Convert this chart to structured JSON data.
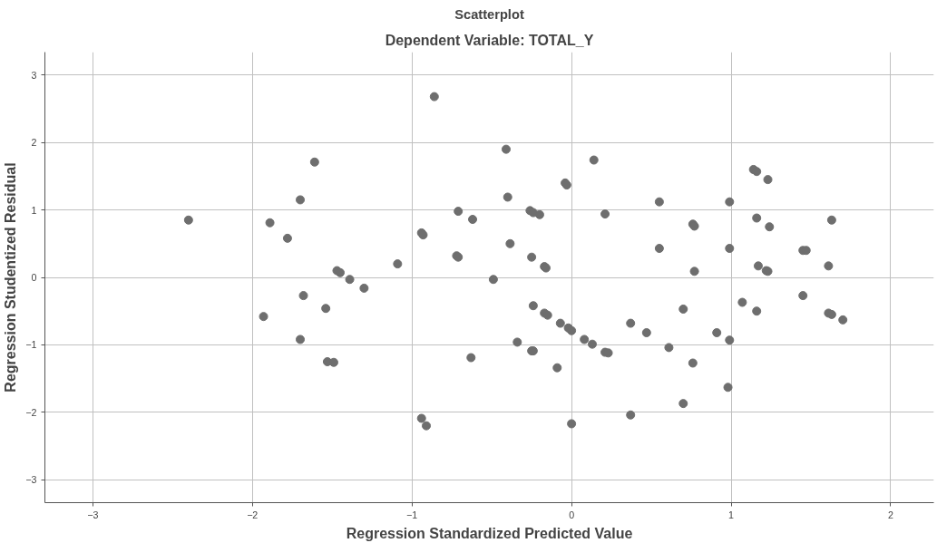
{
  "chart_data": {
    "type": "scatter",
    "title": "Scatterplot",
    "subtitle": "Dependent Variable: TOTAL_Y",
    "xlabel": "Regression Standardized Predicted Value",
    "ylabel": "Regression Studentized Residual",
    "xlim": [
      -3.3,
      2.27
    ],
    "ylim": [
      -3.34,
      3.34
    ],
    "xticks": [
      -3,
      -2,
      -1,
      0,
      1,
      2
    ],
    "yticks": [
      -3,
      -2,
      -1,
      0,
      1,
      2,
      3
    ],
    "grid": true,
    "marker": "circle",
    "series": [
      {
        "color": "#6e6e6e",
        "x": [
          -2.4,
          -1.89,
          -1.78,
          -1.7,
          -1.61,
          -1.93,
          -1.68,
          -1.7,
          -1.54,
          -1.47,
          -1.45,
          -1.39,
          -1.53,
          -1.49,
          -1.3,
          -1.09,
          -0.94,
          -0.93,
          -0.86,
          -0.71,
          -0.62,
          -0.72,
          -0.71,
          -0.49,
          -0.41,
          -0.4,
          -0.385,
          -0.26,
          -0.24,
          -0.2,
          -0.25,
          -0.17,
          -0.16,
          -0.04,
          -0.03,
          0.14,
          0.21,
          -0.24,
          -0.17,
          -0.15,
          -0.07,
          -0.02,
          0.0,
          0.08,
          0.13,
          0.21,
          0.23,
          0.37,
          0.47,
          -0.34,
          -0.25,
          -0.24,
          -0.63,
          -0.09,
          -0.94,
          -0.91,
          0.0,
          0.37,
          0.55,
          0.55,
          0.76,
          0.77,
          0.77,
          0.99,
          0.99,
          1.14,
          1.16,
          1.23,
          1.16,
          1.24,
          1.17,
          1.23,
          1.22,
          1.45,
          1.47,
          1.63,
          1.61,
          1.45,
          1.61,
          1.63,
          1.7,
          1.07,
          1.16,
          0.7,
          0.91,
          0.99,
          0.61,
          0.76,
          0.98,
          0.7
        ],
        "values": [
          0.85,
          0.81,
          0.58,
          1.15,
          1.71,
          -0.58,
          -0.27,
          -0.92,
          -0.46,
          0.1,
          0.07,
          -0.03,
          -1.25,
          -1.26,
          -0.16,
          0.2,
          0.66,
          0.63,
          2.68,
          0.98,
          0.86,
          0.32,
          0.3,
          -0.03,
          1.9,
          1.19,
          0.5,
          0.99,
          0.96,
          0.93,
          0.3,
          0.16,
          0.14,
          1.4,
          1.37,
          1.74,
          0.94,
          -0.42,
          -0.53,
          -0.56,
          -0.68,
          -0.75,
          -0.79,
          -0.92,
          -0.99,
          -1.11,
          -1.12,
          -0.68,
          -0.82,
          -0.96,
          -1.09,
          -1.09,
          -1.19,
          -1.34,
          -2.09,
          -2.2,
          -2.17,
          -2.04,
          1.12,
          0.43,
          0.79,
          0.76,
          0.09,
          1.12,
          0.43,
          1.6,
          1.57,
          1.45,
          0.88,
          0.75,
          0.17,
          0.09,
          0.1,
          0.4,
          0.4,
          0.85,
          0.17,
          -0.27,
          -0.53,
          -0.55,
          -0.63,
          -0.37,
          -0.5,
          -0.47,
          -0.82,
          -0.93,
          -1.04,
          -1.27,
          -1.63,
          -1.87
        ]
      }
    ]
  }
}
